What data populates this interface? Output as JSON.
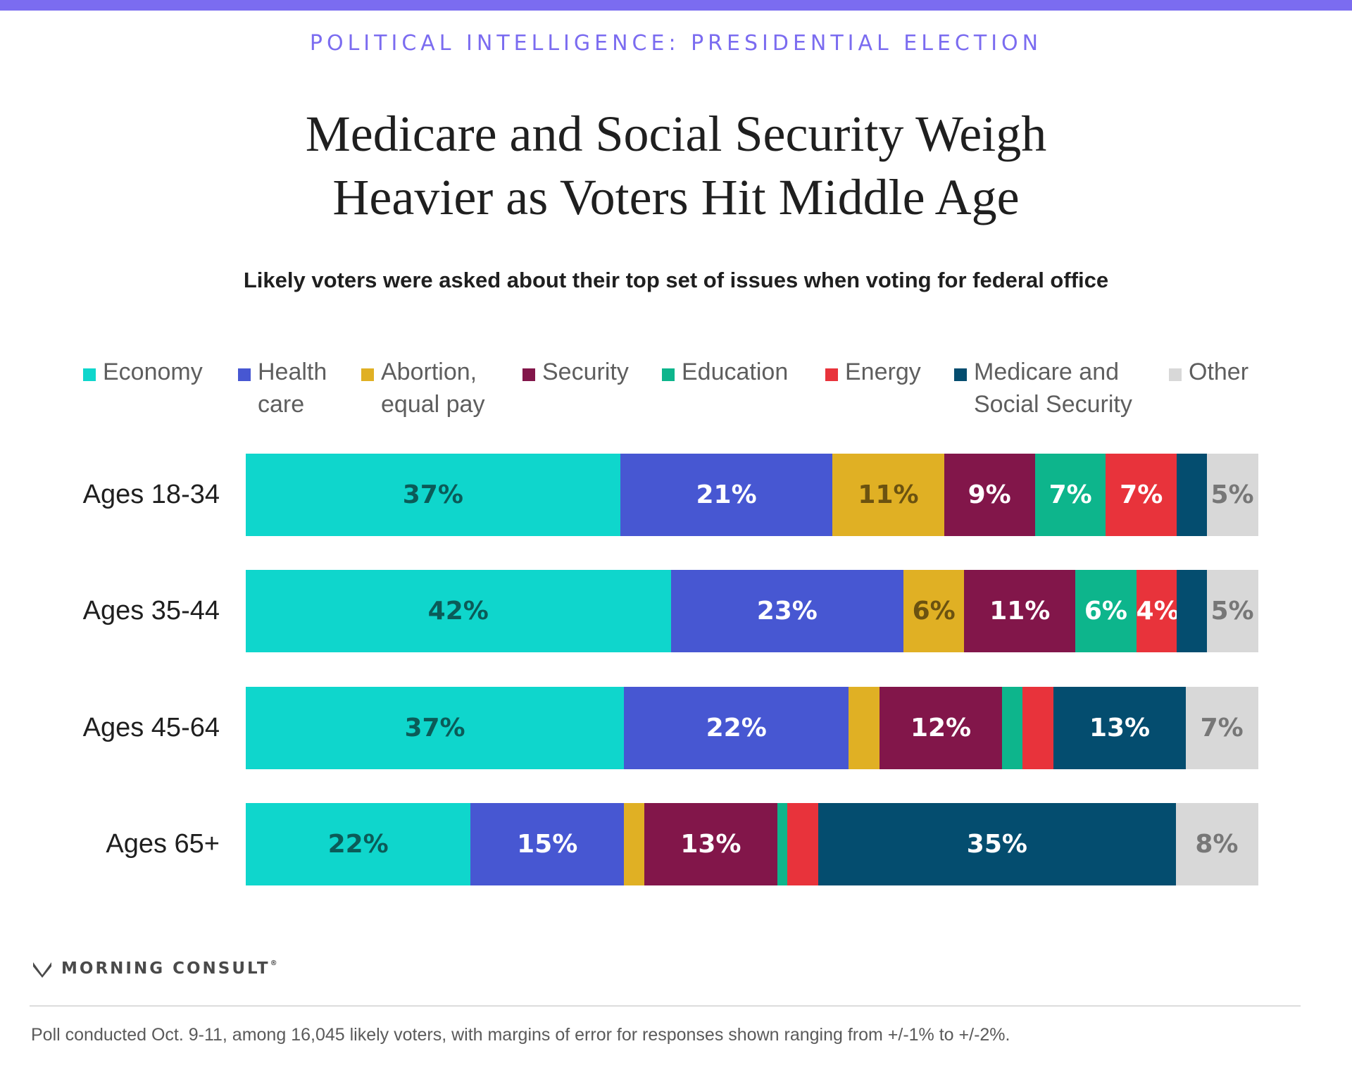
{
  "header": {
    "kicker": "POLITICAL INTELLIGENCE: PRESIDENTIAL ELECTION",
    "title_line1": "Medicare and Social Security Weigh",
    "title_line2": "Heavier as Voters Hit Middle Age",
    "subtitle": "Likely voters were asked about their top set of issues when voting for federal office"
  },
  "chart_data": {
    "type": "bar",
    "orientation": "horizontal",
    "stacked": true,
    "categories": [
      "Ages 18-34",
      "Ages 35-44",
      "Ages 45-64",
      "Ages 65+"
    ],
    "xlim": [
      0,
      100
    ],
    "legend_placement": "top",
    "series": [
      {
        "name": "Economy",
        "color": "#0fd6cc",
        "label_color": "#0b5b58",
        "values": [
          37,
          42,
          37,
          22
        ],
        "labels": [
          "37%",
          "42%",
          "37%",
          "22%"
        ]
      },
      {
        "name": "Health care",
        "color": "#4757d2",
        "label_color": "#ffffff",
        "values": [
          21,
          23,
          22,
          15
        ],
        "labels": [
          "21%",
          "23%",
          "22%",
          "15%"
        ]
      },
      {
        "name": "Abortion, equal pay",
        "color": "#e0b024",
        "label_color": "#6b5210",
        "values": [
          11,
          6,
          3,
          2
        ],
        "labels": [
          "11%",
          "6%",
          "",
          ""
        ]
      },
      {
        "name": "Security",
        "color": "#82164a",
        "label_color": "#ffffff",
        "values": [
          9,
          11,
          12,
          13
        ],
        "labels": [
          "9%",
          "11%",
          "12%",
          "13%"
        ]
      },
      {
        "name": "Education",
        "color": "#0db58c",
        "label_color": "#ffffff",
        "values": [
          7,
          6,
          2,
          1
        ],
        "labels": [
          "7%",
          "6%",
          "",
          ""
        ]
      },
      {
        "name": "Energy",
        "color": "#e8333b",
        "label_color": "#ffffff",
        "values": [
          7,
          4,
          3,
          3
        ],
        "labels": [
          "7%",
          "4%",
          "",
          ""
        ]
      },
      {
        "name": "Medicare and Social Security",
        "color": "#044d6f",
        "label_color": "#ffffff",
        "values": [
          3,
          3,
          13,
          35
        ],
        "labels": [
          "",
          "",
          "13%",
          "35%"
        ]
      },
      {
        "name": "Other",
        "color": "#d8d8d8",
        "label_color": "#777777",
        "values": [
          5,
          5,
          7,
          8
        ],
        "labels": [
          "5%",
          "5%",
          "7%",
          "8%"
        ]
      }
    ]
  },
  "legend": [
    {
      "label": "Economy",
      "color": "#0fd6cc"
    },
    {
      "label": "Health\ncare",
      "color": "#4757d2"
    },
    {
      "label": "Abortion,\nequal pay",
      "color": "#e0b024"
    },
    {
      "label": "Security",
      "color": "#82164a"
    },
    {
      "label": "Education",
      "color": "#0db58c"
    },
    {
      "label": "Energy",
      "color": "#e8333b"
    },
    {
      "label": "Medicare and\nSocial Security",
      "color": "#044d6f"
    },
    {
      "label": "Other",
      "color": "#d8d8d8"
    }
  ],
  "brand": {
    "name": "MORNING CONSULT",
    "mark": "morning-consult-logo-icon"
  },
  "footnote": "Poll conducted Oct. 9-11, among 16,045 likely voters, with margins of error for responses shown ranging from +/-1% to +/-2%.",
  "colors": {
    "accent": "#7b6cf0",
    "text": "#1f1f1f"
  }
}
